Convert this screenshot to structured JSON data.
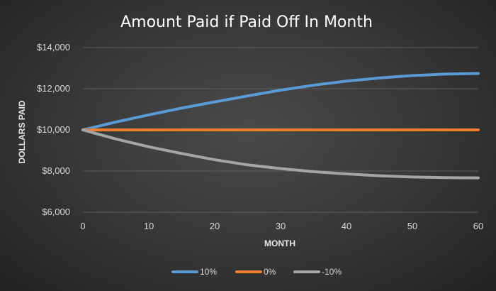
{
  "chart_data": {
    "type": "line",
    "title": "Amount Paid if Paid Off In Month",
    "xlabel": "MONTH",
    "ylabel": "DOLLARS PAID",
    "xlim": [
      0,
      60
    ],
    "ylim": [
      6000,
      14000
    ],
    "x_ticks": [
      0,
      10,
      20,
      30,
      40,
      50,
      60
    ],
    "y_ticks": [
      6000,
      8000,
      10000,
      12000,
      14000
    ],
    "y_tick_labels": [
      "$6,000",
      "$8,000",
      "$10,000",
      "$12,000",
      "$14,000"
    ],
    "grid": true,
    "legend_position": "bottom",
    "x": [
      0,
      5,
      10,
      15,
      20,
      25,
      30,
      35,
      40,
      45,
      50,
      55,
      60
    ],
    "series": [
      {
        "name": "10%",
        "color": "#5b9bd5",
        "values": [
          10000,
          10380,
          10730,
          11060,
          11360,
          11650,
          11930,
          12170,
          12370,
          12520,
          12640,
          12710,
          12740
        ]
      },
      {
        "name": "0%",
        "color": "#ed7d31",
        "values": [
          10000,
          10000,
          10000,
          10000,
          10000,
          10000,
          10000,
          10000,
          10000,
          10000,
          10000,
          10000,
          10000
        ]
      },
      {
        "name": "-10%",
        "color": "#a5a5a5",
        "values": [
          10000,
          9560,
          9180,
          8850,
          8550,
          8300,
          8120,
          7970,
          7860,
          7770,
          7710,
          7680,
          7670
        ]
      }
    ]
  }
}
